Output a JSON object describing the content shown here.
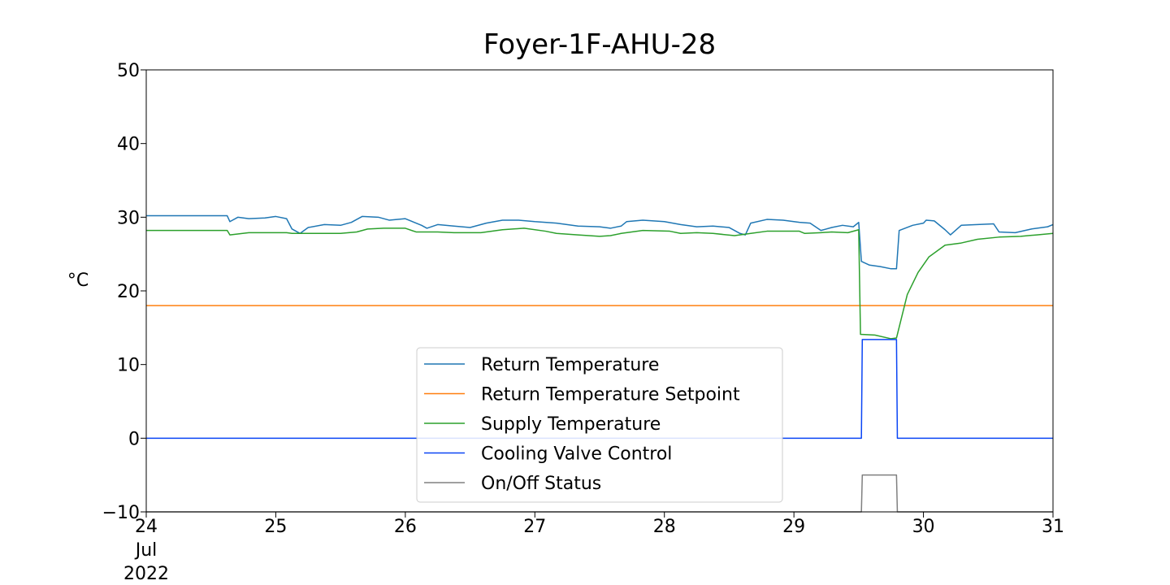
{
  "chart_data": {
    "type": "line",
    "title": "Foyer-1F-AHU-28",
    "ylabel": "°C",
    "xlabel": "",
    "ylim": [
      -10,
      50
    ],
    "xlim": [
      "2022-07-24",
      "2022-07-31"
    ],
    "grid": false,
    "legend_position": "lower-center",
    "x_ticks": [
      {
        "value": "2022-07-24",
        "label": "24",
        "sublabels": [
          "Jul",
          "2022"
        ]
      },
      {
        "value": "2022-07-25",
        "label": "25"
      },
      {
        "value": "2022-07-26",
        "label": "26"
      },
      {
        "value": "2022-07-27",
        "label": "27"
      },
      {
        "value": "2022-07-28",
        "label": "28"
      },
      {
        "value": "2022-07-29",
        "label": "29"
      },
      {
        "value": "2022-07-30",
        "label": "30"
      },
      {
        "value": "2022-07-31",
        "label": "31"
      }
    ],
    "y_ticks": [
      {
        "value": 50,
        "label": "50"
      },
      {
        "value": 40,
        "label": "40"
      },
      {
        "value": 30,
        "label": "30"
      },
      {
        "value": 20,
        "label": "20"
      },
      {
        "value": 10,
        "label": "10"
      },
      {
        "value": 0,
        "label": "0"
      },
      {
        "value": -10,
        "label": "−10"
      }
    ],
    "series": [
      {
        "name": "Return Temperature",
        "color": "#1f77b4",
        "points": [
          [
            "2022-07-24 00:00",
            30.2
          ],
          [
            "2022-07-24 12:00",
            30.2
          ],
          [
            "2022-07-24 15:00",
            30.2
          ],
          [
            "2022-07-24 15:30",
            29.4
          ],
          [
            "2022-07-24 17:00",
            30.0
          ],
          [
            "2022-07-24 19:00",
            29.8
          ],
          [
            "2022-07-24 22:00",
            29.9
          ],
          [
            "2022-07-25 00:00",
            30.1
          ],
          [
            "2022-07-25 02:00",
            29.8
          ],
          [
            "2022-07-25 03:00",
            28.4
          ],
          [
            "2022-07-25 04:30",
            27.8
          ],
          [
            "2022-07-25 06:00",
            28.6
          ],
          [
            "2022-07-25 09:00",
            29.0
          ],
          [
            "2022-07-25 12:00",
            28.9
          ],
          [
            "2022-07-25 14:00",
            29.3
          ],
          [
            "2022-07-25 16:00",
            30.1
          ],
          [
            "2022-07-25 19:00",
            30.0
          ],
          [
            "2022-07-25 21:00",
            29.6
          ],
          [
            "2022-07-26 00:00",
            29.8
          ],
          [
            "2022-07-26 03:00",
            28.9
          ],
          [
            "2022-07-26 04:00",
            28.5
          ],
          [
            "2022-07-26 06:00",
            29.0
          ],
          [
            "2022-07-26 09:00",
            28.8
          ],
          [
            "2022-07-26 12:00",
            28.6
          ],
          [
            "2022-07-26 15:00",
            29.2
          ],
          [
            "2022-07-26 18:00",
            29.6
          ],
          [
            "2022-07-26 21:00",
            29.6
          ],
          [
            "2022-07-27 00:00",
            29.4
          ],
          [
            "2022-07-27 04:00",
            29.2
          ],
          [
            "2022-07-27 08:00",
            28.8
          ],
          [
            "2022-07-27 12:00",
            28.7
          ],
          [
            "2022-07-27 14:00",
            28.5
          ],
          [
            "2022-07-27 16:00",
            28.8
          ],
          [
            "2022-07-27 17:00",
            29.4
          ],
          [
            "2022-07-27 20:00",
            29.6
          ],
          [
            "2022-07-28 00:00",
            29.4
          ],
          [
            "2022-07-28 03:00",
            29.0
          ],
          [
            "2022-07-28 06:00",
            28.7
          ],
          [
            "2022-07-28 09:00",
            28.8
          ],
          [
            "2022-07-28 12:00",
            28.6
          ],
          [
            "2022-07-28 14:00",
            27.8
          ],
          [
            "2022-07-28 15:00",
            27.6
          ],
          [
            "2022-07-28 16:00",
            29.2
          ],
          [
            "2022-07-28 19:00",
            29.7
          ],
          [
            "2022-07-28 22:00",
            29.6
          ],
          [
            "2022-07-29 01:00",
            29.3
          ],
          [
            "2022-07-29 03:00",
            29.2
          ],
          [
            "2022-07-29 05:00",
            28.2
          ],
          [
            "2022-07-29 07:00",
            28.6
          ],
          [
            "2022-07-29 09:00",
            28.9
          ],
          [
            "2022-07-29 11:00",
            28.7
          ],
          [
            "2022-07-29 12:00",
            29.3
          ],
          [
            "2022-07-29 12:30",
            24.0
          ],
          [
            "2022-07-29 14:00",
            23.5
          ],
          [
            "2022-07-29 16:00",
            23.3
          ],
          [
            "2022-07-29 18:00",
            23.0
          ],
          [
            "2022-07-29 19:00",
            23.0
          ],
          [
            "2022-07-29 19:30",
            28.2
          ],
          [
            "2022-07-29 22:00",
            28.9
          ],
          [
            "2022-07-30 00:00",
            29.2
          ],
          [
            "2022-07-30 00:30",
            29.6
          ],
          [
            "2022-07-30 02:00",
            29.5
          ],
          [
            "2022-07-30 04:00",
            28.3
          ],
          [
            "2022-07-30 05:00",
            27.6
          ],
          [
            "2022-07-30 07:00",
            28.9
          ],
          [
            "2022-07-30 10:00",
            29.0
          ],
          [
            "2022-07-30 13:00",
            29.1
          ],
          [
            "2022-07-30 14:00",
            28.0
          ],
          [
            "2022-07-30 17:00",
            27.9
          ],
          [
            "2022-07-30 20:00",
            28.4
          ],
          [
            "2022-07-30 23:00",
            28.7
          ],
          [
            "2022-07-31 00:00",
            29.0
          ]
        ]
      },
      {
        "name": "Return Temperature Setpoint",
        "color": "#ff7f0e",
        "points": [
          [
            "2022-07-24 00:00",
            18.0
          ],
          [
            "2022-07-31 00:00",
            18.0
          ]
        ]
      },
      {
        "name": "Supply Temperature",
        "color": "#2ca02c",
        "points": [
          [
            "2022-07-24 00:00",
            28.2
          ],
          [
            "2022-07-24 15:00",
            28.2
          ],
          [
            "2022-07-24 15:30",
            27.6
          ],
          [
            "2022-07-24 19:00",
            27.9
          ],
          [
            "2022-07-25 02:00",
            27.9
          ],
          [
            "2022-07-25 03:00",
            27.8
          ],
          [
            "2022-07-25 12:00",
            27.8
          ],
          [
            "2022-07-25 15:00",
            28.0
          ],
          [
            "2022-07-25 17:00",
            28.4
          ],
          [
            "2022-07-25 20:00",
            28.5
          ],
          [
            "2022-07-26 00:00",
            28.5
          ],
          [
            "2022-07-26 02:00",
            28.0
          ],
          [
            "2022-07-26 06:00",
            28.0
          ],
          [
            "2022-07-26 09:00",
            27.9
          ],
          [
            "2022-07-26 14:00",
            27.9
          ],
          [
            "2022-07-26 18:00",
            28.3
          ],
          [
            "2022-07-26 22:00",
            28.5
          ],
          [
            "2022-07-27 02:00",
            28.1
          ],
          [
            "2022-07-27 04:00",
            27.8
          ],
          [
            "2022-07-27 08:00",
            27.6
          ],
          [
            "2022-07-27 12:00",
            27.4
          ],
          [
            "2022-07-27 14:00",
            27.5
          ],
          [
            "2022-07-27 16:00",
            27.8
          ],
          [
            "2022-07-27 20:00",
            28.2
          ],
          [
            "2022-07-28 01:00",
            28.1
          ],
          [
            "2022-07-28 03:00",
            27.8
          ],
          [
            "2022-07-28 06:00",
            27.9
          ],
          [
            "2022-07-28 09:00",
            27.8
          ],
          [
            "2022-07-28 13:00",
            27.5
          ],
          [
            "2022-07-28 16:00",
            27.8
          ],
          [
            "2022-07-28 19:00",
            28.1
          ],
          [
            "2022-07-29 01:00",
            28.1
          ],
          [
            "2022-07-29 02:00",
            27.8
          ],
          [
            "2022-07-29 05:00",
            27.9
          ],
          [
            "2022-07-29 07:00",
            28.0
          ],
          [
            "2022-07-29 10:00",
            27.9
          ],
          [
            "2022-07-29 12:00",
            28.3
          ],
          [
            "2022-07-29 12:20",
            14.1
          ],
          [
            "2022-07-29 15:00",
            14.0
          ],
          [
            "2022-07-29 18:00",
            13.5
          ],
          [
            "2022-07-29 19:00",
            13.6
          ],
          [
            "2022-07-29 21:00",
            19.5
          ],
          [
            "2022-07-29 23:00",
            22.5
          ],
          [
            "2022-07-30 01:00",
            24.6
          ],
          [
            "2022-07-30 04:00",
            26.2
          ],
          [
            "2022-07-30 07:00",
            26.5
          ],
          [
            "2022-07-30 10:00",
            27.0
          ],
          [
            "2022-07-30 14:00",
            27.3
          ],
          [
            "2022-07-30 18:00",
            27.4
          ],
          [
            "2022-07-30 21:00",
            27.6
          ],
          [
            "2022-07-31 00:00",
            27.8
          ]
        ]
      },
      {
        "name": "Cooling Valve Control",
        "color": "#0a45f5",
        "points": [
          [
            "2022-07-24 00:00",
            0
          ],
          [
            "2022-07-29 12:30",
            0
          ],
          [
            "2022-07-29 12:40",
            13.4
          ],
          [
            "2022-07-29 19:00",
            13.4
          ],
          [
            "2022-07-29 19:10",
            0
          ],
          [
            "2022-07-31 00:00",
            0
          ]
        ]
      },
      {
        "name": "On/Off Status",
        "color": "#808080",
        "points": [
          [
            "2022-07-24 00:00",
            -10
          ],
          [
            "2022-07-29 12:30",
            -10
          ],
          [
            "2022-07-29 12:40",
            -5
          ],
          [
            "2022-07-29 19:00",
            -5
          ],
          [
            "2022-07-29 19:10",
            -10
          ],
          [
            "2022-07-31 00:00",
            -10
          ]
        ]
      }
    ]
  }
}
